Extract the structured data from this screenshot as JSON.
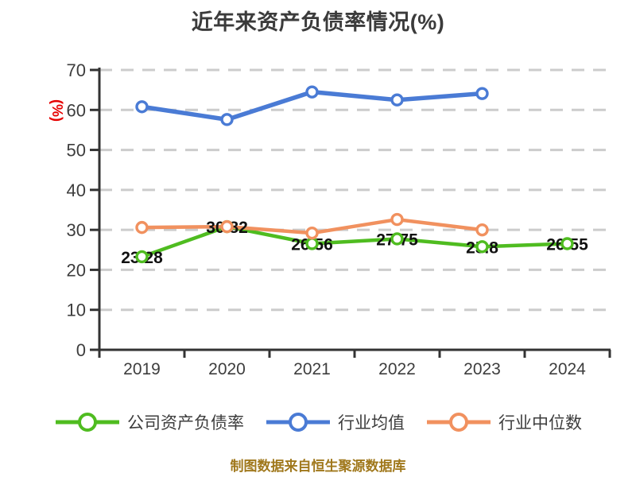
{
  "chart_data": {
    "type": "line",
    "title": "近年来资产负债率情况(%)",
    "ylabel": "(%)",
    "xlabel": "",
    "categories": [
      "2019",
      "2020",
      "2021",
      "2022",
      "2023",
      "2024"
    ],
    "ylim": [
      0,
      70
    ],
    "yticks": [
      0,
      10,
      20,
      30,
      40,
      50,
      60,
      70
    ],
    "grid": "horizontal-dashed",
    "legend_position": "bottom",
    "series": [
      {
        "name": "公司资产负债率",
        "color": "#4fbc20",
        "values": [
          23.28,
          30.82,
          26.56,
          27.75,
          25.8,
          26.55
        ],
        "data_labels": [
          "23.28",
          "30.82",
          "26.56",
          "27.75",
          "25.8",
          "26.55"
        ]
      },
      {
        "name": "行业均值",
        "color": "#4a7bd5",
        "values": [
          60.8,
          57.6,
          64.5,
          62.5,
          64.1,
          null
        ],
        "data_labels": null
      },
      {
        "name": "行业中位数",
        "color": "#f1915f",
        "values": [
          30.6,
          30.8,
          29.2,
          32.6,
          30.0,
          null
        ],
        "data_labels": null
      }
    ]
  },
  "footer": {
    "text": "制图数据来自恒生聚源数据库",
    "color": "#a0781c"
  },
  "colors": {
    "title": "#3b3b3b",
    "axis": "#333333",
    "tick_label": "#3d3d3d",
    "grid": "#cccccc",
    "ylabel": "#e60000",
    "data_label": "#111111",
    "background": "#ffffff"
  }
}
